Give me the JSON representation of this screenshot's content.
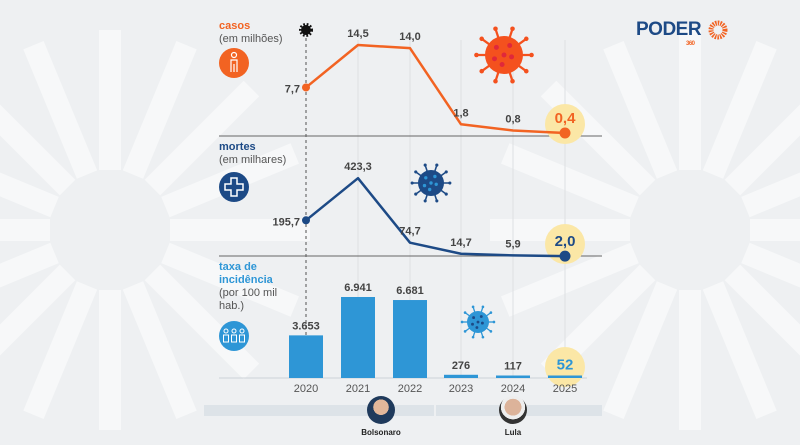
{
  "brand": {
    "name": "PODER",
    "suffix": "360",
    "color": "#1d4a86",
    "accent": "#f26322"
  },
  "colors": {
    "casos": "#f26322",
    "mortes": "#1d4a86",
    "incidencia": "#2e96d6",
    "highlight": "#fbe7a6"
  },
  "chart_data": [
    {
      "type": "line",
      "title": "casos",
      "subtitle": "(em milhões)",
      "icon": "person-icon",
      "categories": [
        "2020",
        "2021",
        "2022",
        "2023",
        "2024",
        "2025"
      ],
      "values": [
        7.7,
        14.5,
        14.0,
        1.8,
        0.8,
        0.4
      ],
      "labels": [
        "7,7",
        "14,5",
        "14,0",
        "1,8",
        "0,8",
        "0,4"
      ]
    },
    {
      "type": "line",
      "title": "mortes",
      "subtitle": "(em milhares)",
      "icon": "medical-cross-icon",
      "categories": [
        "2020",
        "2021",
        "2022",
        "2023",
        "2024",
        "2025"
      ],
      "values": [
        195.7,
        423.3,
        74.7,
        14.7,
        5.9,
        2.0
      ],
      "labels": [
        "195,7",
        "423,3",
        "74,7",
        "14,7",
        "5,9",
        "2,0"
      ]
    },
    {
      "type": "bar",
      "title": "taxa de incidência",
      "subtitle": "(por 100 mil hab.)",
      "icon": "people-group-icon",
      "categories": [
        "2020",
        "2021",
        "2022",
        "2023",
        "2024",
        "2025"
      ],
      "values": [
        3653,
        6941,
        6681,
        276,
        117,
        52
      ],
      "labels": [
        "3.653",
        "6.941",
        "6.681",
        "276",
        "117",
        "52"
      ]
    }
  ],
  "presidents": [
    {
      "name": "Bolsonaro",
      "years": [
        "2020",
        "2021",
        "2022"
      ]
    },
    {
      "name": "Lula",
      "years": [
        "2023",
        "2024",
        "2025"
      ]
    }
  ]
}
